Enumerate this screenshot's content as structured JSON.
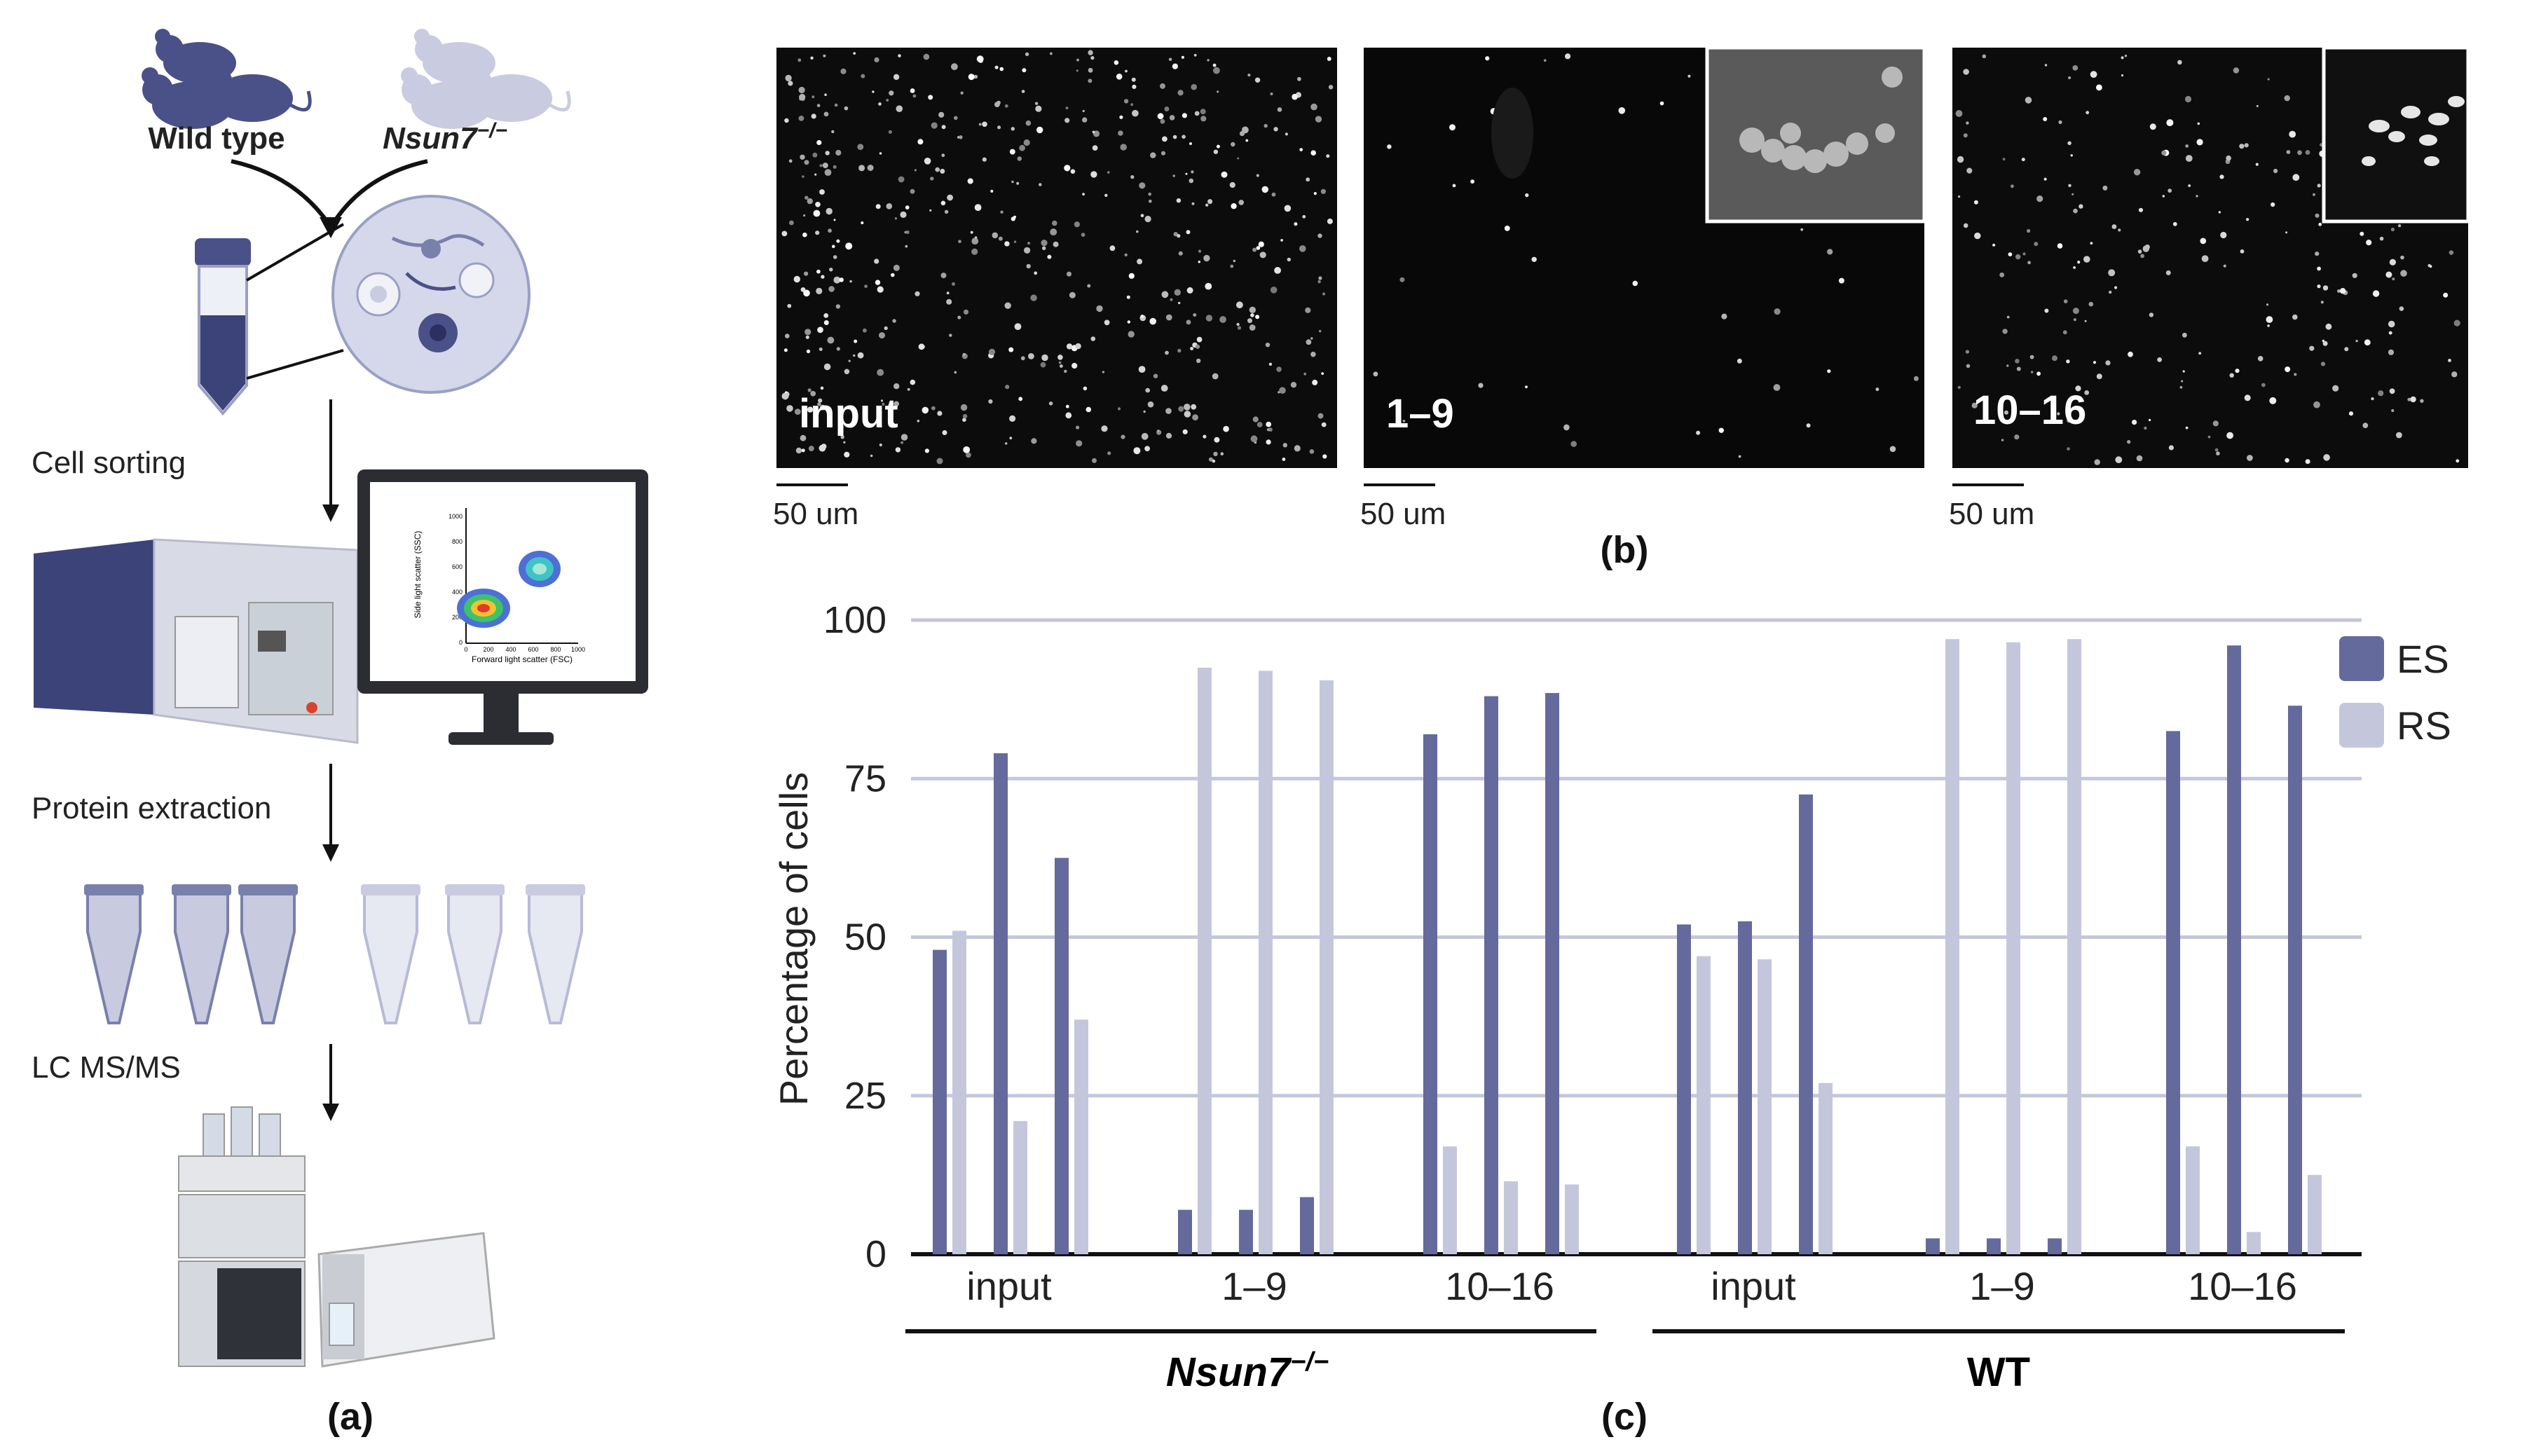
{
  "panel_a": {
    "letter": "(a)",
    "mouse_left_label": "Wild type",
    "mouse_right_label": "Nsun7",
    "mouse_right_superscript": "−/−",
    "step_cell_sorting": "Cell sorting",
    "step_protein_extraction": "Protein extraction",
    "step_lcms": "LC MS/MS",
    "flow_plot": {
      "ylabel": "Side light scatter (SSC)",
      "xlabel": "Forward light scatter (FSC)",
      "yticks": [
        "0",
        "200",
        "400",
        "600",
        "800",
        "1000"
      ],
      "xticks": [
        "0",
        "200",
        "400",
        "600",
        "800",
        "1000"
      ]
    }
  },
  "panel_b": {
    "letter": "(b)",
    "images": [
      {
        "label": "input",
        "scale": "50 um"
      },
      {
        "label": "1–9",
        "scale": "50 um"
      },
      {
        "label": "10–16",
        "scale": "50 um"
      }
    ]
  },
  "panel_c": {
    "letter": "(c)",
    "group_nsun7": "Nsun7",
    "group_nsun7_sup": "−/−",
    "group_wt": "WT"
  },
  "colors": {
    "ES": "#646a9c",
    "RS": "#c4c7dc",
    "grid": "#c4c7dc",
    "dark_blue": "#3c4378"
  },
  "chart_data": {
    "type": "bar",
    "ylabel": "Percentage of cells",
    "ylim": [
      0,
      100
    ],
    "yticks": [
      0,
      25,
      50,
      75,
      100
    ],
    "legend": [
      "ES",
      "RS"
    ],
    "legend_position": "right",
    "grid": true,
    "groups": [
      "Nsun7 −/−",
      "WT"
    ],
    "categories": [
      "input",
      "1–9",
      "10–16",
      "input",
      "1–9",
      "10–16"
    ],
    "replicates_per_category": 3,
    "series": [
      {
        "name": "ES",
        "values": [
          [
            48,
            79,
            62.5
          ],
          [
            7,
            7,
            9
          ],
          [
            82,
            88,
            88.5
          ],
          [
            52,
            52.5,
            72.5
          ],
          [
            2.5,
            2.5,
            2.5
          ],
          [
            82.5,
            96,
            86.5
          ]
        ]
      },
      {
        "name": "RS",
        "values": [
          [
            51,
            21,
            37
          ],
          [
            92.5,
            92,
            90.5
          ],
          [
            17,
            11.5,
            11
          ],
          [
            47,
            46.5,
            27
          ],
          [
            97,
            96.5,
            97
          ],
          [
            17,
            3.5,
            12.5
          ]
        ]
      }
    ]
  }
}
